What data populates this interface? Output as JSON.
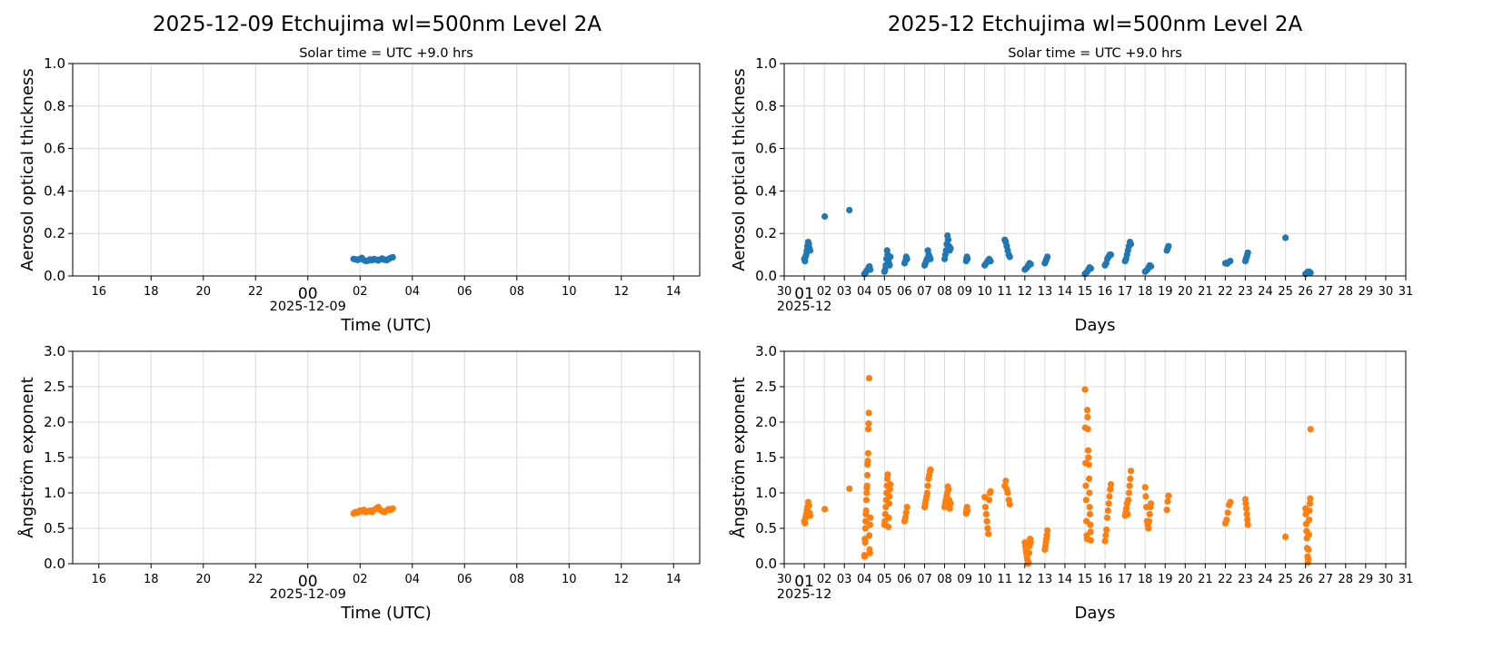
{
  "colors": {
    "aot": "#1f77b4",
    "ae": "#ff7f0e",
    "grid": "#dcdcdc"
  },
  "chart_data": [
    {
      "type": "scatter",
      "panel": "daily-aot",
      "title": "2025-12-09  Etchujima  wl=500nm  Level 2A",
      "subtitle": "Solar time = UTC +9.0 hrs",
      "xlabel": "Time (UTC)",
      "ylabel": "Aerosol optical thickness",
      "xlim": [
        "2025-12-08T15:00",
        "2025-12-09T15:00"
      ],
      "ylim": [
        0,
        1.0
      ],
      "yticks": [
        "0.0",
        "0.2",
        "0.4",
        "0.6",
        "0.8",
        "1.0"
      ],
      "yvals": [
        0,
        0.2,
        0.4,
        0.6,
        0.8,
        1.0
      ],
      "xticks": [
        "16",
        "18",
        "20",
        "22",
        "00",
        "02",
        "04",
        "06",
        "08",
        "10",
        "12",
        "14"
      ],
      "xtick_date": "2025-12-09",
      "grid": true,
      "clusters": [
        {
          "t0": "2025-12-09T01:45",
          "t1": "2025-12-09T03:15",
          "y": [
            0.08,
            0.078,
            0.075,
            0.08,
            0.085,
            0.075,
            0.07,
            0.072,
            0.078,
            0.074,
            0.08,
            0.076,
            0.073,
            0.078,
            0.082,
            0.076,
            0.074,
            0.08,
            0.085,
            0.088
          ]
        }
      ]
    },
    {
      "type": "scatter",
      "panel": "monthly-aot",
      "title": "2025-12  Etchujima  wl=500nm  Level 2A",
      "subtitle": "Solar time = UTC +9.0 hrs",
      "xlabel": "Days",
      "ylabel": "Aerosol optical thickness",
      "xlim": [
        "2025-11-30T00:00",
        "2025-12-31T00:00"
      ],
      "ylim": [
        0,
        1.0
      ],
      "yticks": [
        "0.0",
        "0.2",
        "0.4",
        "0.6",
        "0.8",
        "1.0"
      ],
      "yvals": [
        0,
        0.2,
        0.4,
        0.6,
        0.8,
        1.0
      ],
      "xticks": [
        "30",
        "01",
        "02",
        "03",
        "04",
        "05",
        "06",
        "07",
        "08",
        "09",
        "10",
        "11",
        "12",
        "13",
        "14",
        "15",
        "16",
        "17",
        "18",
        "19",
        "20",
        "21",
        "22",
        "23",
        "24",
        "25",
        "26",
        "27",
        "28",
        "29",
        "30",
        "31"
      ],
      "xtick_date": "2025-12",
      "grid": true,
      "clusters": [
        {
          "t0": "2025-12-01T00:00",
          "t1": "2025-12-01T07:00",
          "y": [
            0.08,
            0.07,
            0.09,
            0.1,
            0.12,
            0.14,
            0.16,
            0.15,
            0.13,
            0.12
          ]
        },
        {
          "t0": "2025-12-02T00:30",
          "t1": "2025-12-02T00:30",
          "y": [
            0.28
          ]
        },
        {
          "t0": "2025-12-03T06:00",
          "t1": "2025-12-03T06:00",
          "y": [
            0.31
          ]
        },
        {
          "t0": "2025-12-04T00:00",
          "t1": "2025-12-04T07:00",
          "y": [
            0.01,
            0.012,
            0.02,
            0.025,
            0.03,
            0.04,
            0.045,
            0.03
          ]
        },
        {
          "t0": "2025-12-05T00:00",
          "t1": "2025-12-05T07:00",
          "y": [
            0.02,
            0.03,
            0.05,
            0.08,
            0.12,
            0.1,
            0.07,
            0.06,
            0.05,
            0.09
          ]
        },
        {
          "t0": "2025-12-06T00:00",
          "t1": "2025-12-06T03:00",
          "y": [
            0.06,
            0.07,
            0.09,
            0.08
          ]
        },
        {
          "t0": "2025-12-07T00:00",
          "t1": "2025-12-07T07:00",
          "y": [
            0.05,
            0.06,
            0.07,
            0.08,
            0.12,
            0.1,
            0.09,
            0.08
          ]
        },
        {
          "t0": "2025-12-08T00:00",
          "t1": "2025-12-08T07:00",
          "y": [
            0.08,
            0.1,
            0.12,
            0.15,
            0.19,
            0.17,
            0.14,
            0.12,
            0.13
          ]
        },
        {
          "t0": "2025-12-09T01:45",
          "t1": "2025-12-09T03:15",
          "y": [
            0.07,
            0.08,
            0.09,
            0.08
          ]
        },
        {
          "t0": "2025-12-10T00:00",
          "t1": "2025-12-10T07:00",
          "y": [
            0.05,
            0.06,
            0.07,
            0.08,
            0.07
          ]
        },
        {
          "t0": "2025-12-11T00:00",
          "t1": "2025-12-11T06:00",
          "y": [
            0.17,
            0.16,
            0.14,
            0.12,
            0.1,
            0.09
          ]
        },
        {
          "t0": "2025-12-12T00:00",
          "t1": "2025-12-12T07:00",
          "y": [
            0.03,
            0.035,
            0.04,
            0.05,
            0.06,
            0.055
          ]
        },
        {
          "t0": "2025-12-13T00:00",
          "t1": "2025-12-13T03:00",
          "y": [
            0.06,
            0.07,
            0.08,
            0.09
          ]
        },
        {
          "t0": "2025-12-15T00:00",
          "t1": "2025-12-15T07:00",
          "y": [
            0.01,
            0.015,
            0.02,
            0.03,
            0.04,
            0.035
          ]
        },
        {
          "t0": "2025-12-16T00:00",
          "t1": "2025-12-16T07:00",
          "y": [
            0.05,
            0.06,
            0.08,
            0.09,
            0.1,
            0.1
          ]
        },
        {
          "t0": "2025-12-17T00:00",
          "t1": "2025-12-17T07:00",
          "y": [
            0.07,
            0.08,
            0.1,
            0.12,
            0.14,
            0.16,
            0.15
          ]
        },
        {
          "t0": "2025-12-18T00:00",
          "t1": "2025-12-18T07:00",
          "y": [
            0.02,
            0.025,
            0.03,
            0.04,
            0.05,
            0.045
          ]
        },
        {
          "t0": "2025-12-19T02:00",
          "t1": "2025-12-19T04:00",
          "y": [
            0.12,
            0.13,
            0.14
          ]
        },
        {
          "t0": "2025-12-22T00:00",
          "t1": "2025-12-22T06:00",
          "y": [
            0.06,
            0.058,
            0.065,
            0.07
          ]
        },
        {
          "t0": "2025-12-23T00:00",
          "t1": "2025-12-23T03:00",
          "y": [
            0.07,
            0.08,
            0.09,
            0.1,
            0.11
          ]
        },
        {
          "t0": "2025-12-25T00:00",
          "t1": "2025-12-25T00:00",
          "y": [
            0.18
          ]
        },
        {
          "t0": "2025-12-26T00:00",
          "t1": "2025-12-26T06:00",
          "y": [
            0.01,
            0.015,
            0.02,
            0.02,
            0.015
          ]
        }
      ]
    },
    {
      "type": "scatter",
      "panel": "daily-ae",
      "xlabel": "Time (UTC)",
      "ylabel": "Ångström exponent",
      "xlim": [
        "2025-12-08T15:00",
        "2025-12-09T15:00"
      ],
      "ylim": [
        0,
        3.0
      ],
      "yticks": [
        "0.0",
        "0.5",
        "1.0",
        "1.5",
        "2.0",
        "2.5",
        "3.0"
      ],
      "yvals": [
        0,
        0.5,
        1.0,
        1.5,
        2.0,
        2.5,
        3.0
      ],
      "xticks": [
        "16",
        "18",
        "20",
        "22",
        "00",
        "02",
        "04",
        "06",
        "08",
        "10",
        "12",
        "14"
      ],
      "xtick_date": "2025-12-09",
      "grid": true,
      "clusters": [
        {
          "t0": "2025-12-09T01:45",
          "t1": "2025-12-09T03:15",
          "y": [
            0.71,
            0.73,
            0.72,
            0.75,
            0.74,
            0.76,
            0.73,
            0.74,
            0.75,
            0.73,
            0.76,
            0.78,
            0.8,
            0.76,
            0.74,
            0.73,
            0.75,
            0.77,
            0.76,
            0.78
          ]
        }
      ]
    },
    {
      "type": "scatter",
      "panel": "monthly-ae",
      "xlabel": "Days",
      "ylabel": "Ångström exponent",
      "xlim": [
        "2025-11-30T00:00",
        "2025-12-31T00:00"
      ],
      "ylim": [
        0,
        3.0
      ],
      "yticks": [
        "0.0",
        "0.5",
        "1.0",
        "1.5",
        "2.0",
        "2.5",
        "3.0"
      ],
      "yvals": [
        0,
        0.5,
        1.0,
        1.5,
        2.0,
        2.5,
        3.0
      ],
      "xticks": [
        "30",
        "01",
        "02",
        "03",
        "04",
        "05",
        "06",
        "07",
        "08",
        "09",
        "10",
        "11",
        "12",
        "13",
        "14",
        "15",
        "16",
        "17",
        "18",
        "19",
        "20",
        "21",
        "22",
        "23",
        "24",
        "25",
        "26",
        "27",
        "28",
        "29",
        "30",
        "31"
      ],
      "xtick_date": "2025-12",
      "grid": true,
      "clusters": [
        {
          "t0": "2025-12-01T00:00",
          "t1": "2025-12-01T07:00",
          "y": [
            0.6,
            0.57,
            0.65,
            0.7,
            0.75,
            0.8,
            0.87,
            0.82,
            0.72,
            0.68
          ]
        },
        {
          "t0": "2025-12-02T00:30",
          "t1": "2025-12-02T00:30",
          "y": [
            0.77
          ]
        },
        {
          "t0": "2025-12-03T06:00",
          "t1": "2025-12-03T06:00",
          "y": [
            1.06
          ]
        },
        {
          "t0": "2025-12-04T00:00",
          "t1": "2025-12-04T07:00",
          "y": [
            0.12,
            0.1,
            0.35,
            0.3,
            0.5,
            0.6,
            0.7,
            0.75,
            0.9,
            1.0,
            1.07,
            1.1,
            1.25,
            1.4,
            1.45,
            1.56,
            1.9,
            1.98,
            2.13,
            2.62,
            0.4,
            0.2,
            0.15,
            0.55,
            0.65
          ]
        },
        {
          "t0": "2025-12-05T00:00",
          "t1": "2025-12-05T07:00",
          "y": [
            0.55,
            0.6,
            0.7,
            0.8,
            0.9,
            1.0,
            1.1,
            1.2,
            1.26,
            0.52,
            0.65,
            0.85,
            0.95,
            1.05,
            1.12
          ]
        },
        {
          "t0": "2025-12-06T00:00",
          "t1": "2025-12-06T03:00",
          "y": [
            0.6,
            0.65,
            0.72,
            0.8
          ]
        },
        {
          "t0": "2025-12-07T00:00",
          "t1": "2025-12-07T07:00",
          "y": [
            0.8,
            0.85,
            0.9,
            0.95,
            1.0,
            1.1,
            1.2,
            1.25,
            1.3,
            1.33
          ]
        },
        {
          "t0": "2025-12-08T00:00",
          "t1": "2025-12-08T07:00",
          "y": [
            0.8,
            0.85,
            0.9,
            0.95,
            1.0,
            1.09,
            1.05,
            0.9,
            0.78,
            0.85
          ]
        },
        {
          "t0": "2025-12-09T01:45",
          "t1": "2025-12-09T03:15",
          "y": [
            0.71,
            0.74,
            0.78,
            0.8,
            0.75
          ]
        },
        {
          "t0": "2025-12-10T00:00",
          "t1": "2025-12-10T07:00",
          "y": [
            0.94,
            0.8,
            0.7,
            0.6,
            0.5,
            0.42,
            0.9,
            1.0,
            1.02
          ]
        },
        {
          "t0": "2025-12-11T00:00",
          "t1": "2025-12-11T06:00",
          "y": [
            1.1,
            1.17,
            1.05,
            1.0,
            0.9,
            0.84
          ]
        },
        {
          "t0": "2025-12-12T00:00",
          "t1": "2025-12-12T07:00",
          "y": [
            0.3,
            0.25,
            0.2,
            0.15,
            0.1,
            0.05,
            0.0,
            0.02,
            0.15,
            0.25,
            0.35,
            0.3
          ]
        },
        {
          "t0": "2025-12-13T00:00",
          "t1": "2025-12-13T03:00",
          "y": [
            0.2,
            0.25,
            0.3,
            0.35,
            0.4,
            0.47
          ]
        },
        {
          "t0": "2025-12-15T00:00",
          "t1": "2025-12-15T07:00",
          "y": [
            2.46,
            1.92,
            1.42,
            1.1,
            0.9,
            0.6,
            0.4,
            0.35,
            2.17,
            2.07,
            1.9,
            1.6,
            1.5,
            1.4,
            1.2,
            1.0,
            0.8,
            0.7,
            0.55,
            0.45,
            0.33
          ]
        },
        {
          "t0": "2025-12-16T00:00",
          "t1": "2025-12-16T07:00",
          "y": [
            0.32,
            0.4,
            0.48,
            0.65,
            0.75,
            0.85,
            0.95,
            1.05,
            1.12
          ]
        },
        {
          "t0": "2025-12-17T00:00",
          "t1": "2025-12-17T07:00",
          "y": [
            0.68,
            0.72,
            0.78,
            0.85,
            0.7,
            0.9,
            1.0,
            1.1,
            1.2,
            1.31
          ]
        },
        {
          "t0": "2025-12-18T00:00",
          "t1": "2025-12-18T07:00",
          "y": [
            1.08,
            0.95,
            0.8,
            0.6,
            0.55,
            0.5,
            0.6,
            0.7,
            0.8,
            0.85
          ]
        },
        {
          "t0": "2025-12-19T02:00",
          "t1": "2025-12-19T04:00",
          "y": [
            0.76,
            0.88,
            0.96
          ]
        },
        {
          "t0": "2025-12-22T00:00",
          "t1": "2025-12-22T06:00",
          "y": [
            0.57,
            0.62,
            0.72,
            0.83,
            0.87
          ]
        },
        {
          "t0": "2025-12-23T00:00",
          "t1": "2025-12-23T03:00",
          "y": [
            0.91,
            0.85,
            0.78,
            0.7,
            0.62,
            0.55
          ]
        },
        {
          "t0": "2025-12-25T00:00",
          "t1": "2025-12-25T00:00",
          "y": [
            0.38
          ]
        },
        {
          "t0": "2025-12-26T00:00",
          "t1": "2025-12-26T06:00",
          "y": [
            0.78,
            0.7,
            0.56,
            0.46,
            0.36,
            0.22,
            0.1,
            0.02,
            0.07,
            0.2,
            0.41,
            0.62,
            0.75,
            0.85,
            0.92,
            1.9
          ]
        }
      ]
    }
  ]
}
